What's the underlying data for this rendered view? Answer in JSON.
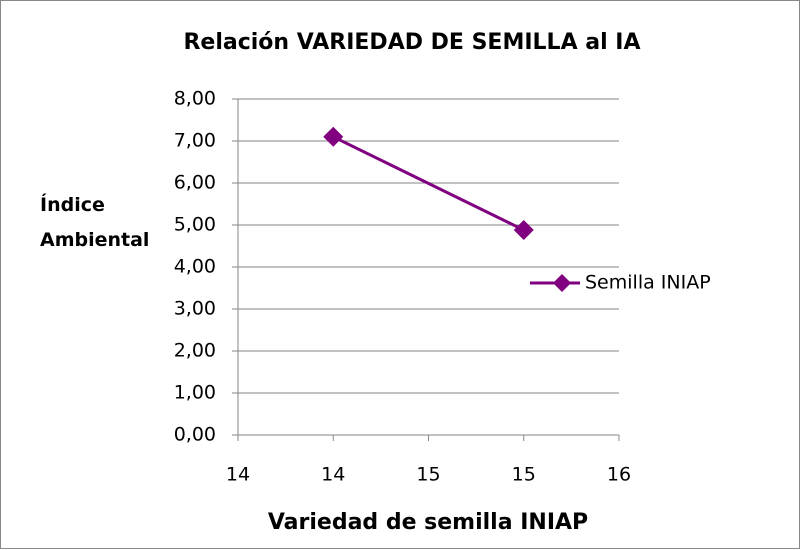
{
  "chart_data": {
    "type": "line",
    "title": "Relación VARIEDAD DE SEMILLA al IA",
    "xlabel": "Variedad de semilla INIAP",
    "ylabel": "Índice Ambiental",
    "x": [
      14.2,
      15.4
    ],
    "series": [
      {
        "name": "Semilla INIAP",
        "color": "#800080",
        "values": [
          7.1,
          4.88
        ]
      }
    ],
    "xlim": [
      13.6,
      16
    ],
    "xticks": [
      {
        "value": 13.6,
        "label": "14"
      },
      {
        "value": 14.2,
        "label": "14"
      },
      {
        "value": 14.8,
        "label": "15"
      },
      {
        "value": 15.4,
        "label": "15"
      },
      {
        "value": 16,
        "label": "16"
      }
    ],
    "ylim": [
      0,
      8
    ],
    "yticks": [
      {
        "value": 0,
        "label": "0,00"
      },
      {
        "value": 1,
        "label": "1,00"
      },
      {
        "value": 2,
        "label": "2,00"
      },
      {
        "value": 3,
        "label": "3,00"
      },
      {
        "value": 4,
        "label": "4,00"
      },
      {
        "value": 5,
        "label": "5,00"
      },
      {
        "value": 6,
        "label": "6,00"
      },
      {
        "value": 7,
        "label": "7,00"
      },
      {
        "value": 8,
        "label": "8,00"
      }
    ],
    "grid": true,
    "legend": "right"
  }
}
